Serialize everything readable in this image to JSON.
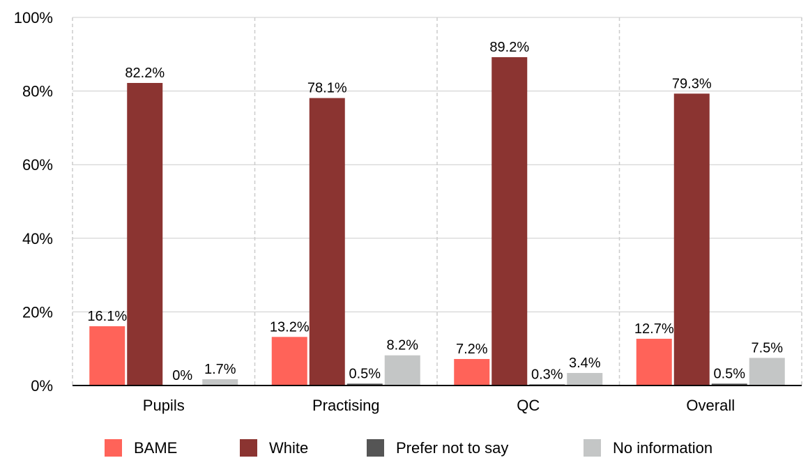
{
  "chart_data": {
    "type": "bar",
    "categories": [
      "Pupils",
      "Practising",
      "QC",
      "Overall"
    ],
    "series": [
      {
        "name": "BAME",
        "color": "#ff6359",
        "values": [
          16.1,
          13.2,
          7.2,
          12.7
        ]
      },
      {
        "name": "White",
        "color": "#8b3431",
        "values": [
          82.2,
          78.1,
          89.2,
          79.3
        ]
      },
      {
        "name": "Prefer not to say",
        "color": "#555555",
        "values": [
          0,
          0.5,
          0.3,
          0.5
        ]
      },
      {
        "name": "No information",
        "color": "#c4c6c6",
        "values": [
          1.7,
          8.2,
          3.4,
          7.5
        ]
      }
    ],
    "value_labels": [
      [
        "16.1%",
        "13.2%",
        "7.2%",
        "12.7%"
      ],
      [
        "82.2%",
        "78.1%",
        "89.2%",
        "79.3%"
      ],
      [
        "0%",
        "0.5%",
        "0.3%",
        "0.5%"
      ],
      [
        "1.7%",
        "8.2%",
        "3.4%",
        "7.5%"
      ]
    ],
    "y_ticks": [
      "0%",
      "20%",
      "40%",
      "60%",
      "80%",
      "100%"
    ],
    "ylim": [
      0,
      100
    ],
    "y_tick_values": [
      0,
      20,
      40,
      60,
      80,
      100
    ],
    "grid": "horizontal solid, vertical dashed category separators",
    "legend_position": "bottom"
  }
}
